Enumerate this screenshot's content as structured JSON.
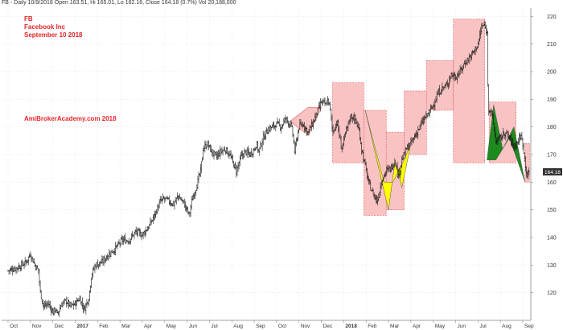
{
  "header": {
    "quote_line": "FB - Daily 10/9/2018 Open 163.51, Hi 165.01, Lo 162.16, Close 164.18 (0.7%) Vol 20,188,000"
  },
  "annotations": {
    "ticker": "FB",
    "company": "Facebook Inc",
    "date": "September 10 2018",
    "watermark": "AmiBrokerAcademy.com  2018"
  },
  "colors": {
    "candles": "#111111",
    "box_fill": "#f9b8b8",
    "box_border": "#e36a6a",
    "pattern_yellow": "#ffff00",
    "pattern_green": "#1e8a1e",
    "label_red": "#e8262b",
    "last_price_bg": "#333333"
  },
  "chart_data": {
    "type": "candlestick",
    "ylim": [
      110,
      223
    ],
    "y_ticks": [
      120,
      130,
      140,
      150,
      160,
      170,
      180,
      190,
      200,
      210,
      220
    ],
    "x_labels": [
      "Oct",
      "Nov",
      "Dec",
      "2017",
      "Feb",
      "Mar",
      "Apr",
      "May",
      "Jun",
      "Jul",
      "Aug",
      "Sep",
      "Oct",
      "Nov",
      "Dec",
      "2018",
      "Feb",
      "Mar",
      "Apr",
      "May",
      "Jun",
      "Jul",
      "Aug",
      "Sep"
    ],
    "x_label_bold": [
      "2017",
      "2018"
    ],
    "last_price": "164.18",
    "grid": true,
    "price_path": [
      [
        0,
        128
      ],
      [
        2,
        129
      ],
      [
        4,
        131
      ],
      [
        5,
        134
      ],
      [
        6,
        130
      ],
      [
        6.8,
        128
      ],
      [
        7.2,
        120
      ],
      [
        8,
        115
      ],
      [
        9,
        116
      ],
      [
        10,
        113
      ],
      [
        10.6,
        114
      ],
      [
        11,
        112
      ],
      [
        12,
        116
      ],
      [
        13,
        117
      ],
      [
        14,
        115
      ],
      [
        15,
        116
      ],
      [
        16,
        118
      ],
      [
        17,
        114
      ],
      [
        18,
        118
      ],
      [
        18.6,
        126
      ],
      [
        19.5,
        130
      ],
      [
        21,
        131
      ],
      [
        22.5,
        134
      ],
      [
        24,
        136
      ],
      [
        25.5,
        139
      ],
      [
        27,
        139
      ],
      [
        28.5,
        142
      ],
      [
        30,
        141
      ],
      [
        31.5,
        144
      ],
      [
        33,
        149
      ],
      [
        34,
        153
      ],
      [
        35,
        154
      ],
      [
        36,
        153
      ],
      [
        37,
        152
      ],
      [
        38,
        155
      ],
      [
        39,
        153
      ],
      [
        40,
        150
      ],
      [
        40.5,
        148
      ],
      [
        41,
        153
      ],
      [
        42,
        158
      ],
      [
        43,
        164
      ],
      [
        43.6,
        172
      ],
      [
        44.5,
        174
      ],
      [
        45.5,
        171
      ],
      [
        46.5,
        169
      ],
      [
        47.5,
        171
      ],
      [
        48.5,
        172
      ],
      [
        49.5,
        170
      ],
      [
        50.5,
        166
      ],
      [
        51,
        164
      ],
      [
        52,
        169
      ],
      [
        53,
        171
      ],
      [
        54,
        170
      ],
      [
        55,
        172
      ],
      [
        55.5,
        174
      ],
      [
        56,
        171
      ],
      [
        57,
        176
      ],
      [
        58,
        179
      ],
      [
        59,
        180
      ],
      [
        60,
        181
      ],
      [
        61,
        180
      ],
      [
        62,
        183
      ],
      [
        63,
        181
      ],
      [
        63.5,
        179
      ],
      [
        64,
        171
      ],
      [
        65,
        180
      ],
      [
        66,
        181
      ],
      [
        67,
        178
      ],
      [
        68,
        181
      ],
      [
        69,
        185
      ],
      [
        70,
        189
      ],
      [
        71,
        188
      ],
      [
        71.5,
        190
      ],
      [
        72,
        186
      ],
      [
        72.5,
        178
      ],
      [
        73.5,
        182
      ],
      [
        74.5,
        172
      ],
      [
        75.5,
        178
      ],
      [
        76.5,
        184
      ],
      [
        77.5,
        183
      ],
      [
        78.5,
        178
      ],
      [
        79,
        172
      ],
      [
        79.5,
        168
      ],
      [
        80.5,
        160
      ],
      [
        81.5,
        156
      ],
      [
        82.5,
        153
      ],
      [
        83.5,
        161
      ],
      [
        84.5,
        164
      ],
      [
        85.5,
        165
      ],
      [
        86.5,
        168
      ],
      [
        87,
        163
      ],
      [
        87.5,
        164
      ],
      [
        88,
        168
      ],
      [
        89,
        172
      ],
      [
        90,
        174
      ],
      [
        91,
        177
      ],
      [
        92,
        180
      ],
      [
        93,
        183
      ],
      [
        94,
        185
      ],
      [
        95,
        188
      ],
      [
        96,
        192
      ],
      [
        97,
        194
      ],
      [
        98,
        195
      ],
      [
        99,
        199
      ],
      [
        100,
        198
      ],
      [
        101,
        200
      ],
      [
        102,
        203
      ],
      [
        103,
        205
      ],
      [
        104,
        207
      ],
      [
        105,
        210
      ],
      [
        105.8,
        216
      ],
      [
        106.3,
        217
      ],
      [
        107,
        214
      ],
      [
        107.3,
        187
      ],
      [
        108,
        185
      ],
      [
        108.5,
        180
      ],
      [
        109,
        175
      ],
      [
        110,
        176
      ],
      [
        111,
        178
      ],
      [
        112,
        176
      ],
      [
        113,
        173
      ],
      [
        114,
        175
      ],
      [
        114.5,
        177
      ],
      [
        115,
        174
      ],
      [
        115.6,
        166
      ],
      [
        116,
        162
      ],
      [
        116.5,
        164
      ]
    ],
    "boxes": [
      [
        72.5,
        79.5,
        167,
        196
      ],
      [
        79.5,
        84.5,
        148,
        186
      ],
      [
        84.5,
        88.5,
        150,
        178
      ],
      [
        88.5,
        93.5,
        170,
        193
      ],
      [
        93.5,
        99.5,
        186,
        204
      ],
      [
        99.5,
        106.5,
        167,
        219
      ],
      [
        107.5,
        113.5,
        167,
        189
      ],
      [
        115.5,
        116.5,
        160,
        174
      ]
    ],
    "triangles": [
      [
        [
          63,
          182
        ],
        [
          67,
          187
        ],
        [
          70,
          187
        ],
        [
          67,
          177
        ],
        [
          63,
          182
        ]
      ]
    ],
    "yellow_patterns": [
      [
        [
          79.8,
          186
        ],
        [
          85,
          150
        ],
        [
          86.5,
          168
        ],
        [
          88,
          158
        ],
        [
          90,
          174
        ],
        [
          88.5,
          168
        ],
        [
          86,
          160
        ],
        [
          84,
          160
        ],
        [
          79.8,
          186
        ]
      ]
    ],
    "green_patterns": [
      [
        [
          107,
          168
        ],
        [
          108.5,
          188
        ],
        [
          110.5,
          172
        ],
        [
          113,
          180
        ],
        [
          115.5,
          160
        ],
        [
          112,
          176
        ],
        [
          109,
          168
        ],
        [
          107,
          168
        ]
      ]
    ]
  }
}
